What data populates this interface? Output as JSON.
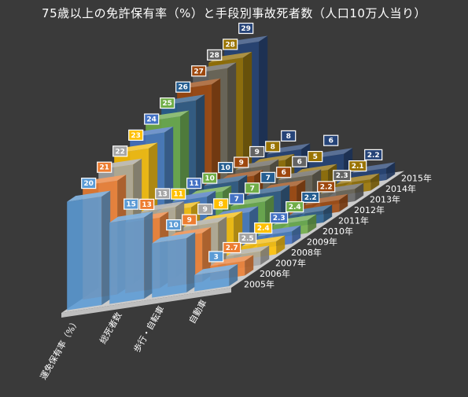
{
  "chart_data": {
    "type": "bar",
    "title": "75歳以上の免許保有率（%）と手段別事故死者数（人口10万人当り）",
    "categories": [
      "運免保有率（%）",
      "総死者数",
      "歩行・自転車",
      "自動車"
    ],
    "series": [
      {
        "name": "2005年",
        "values": [
          20,
          15,
          10,
          3.0
        ]
      },
      {
        "name": "2006年",
        "values": [
          21,
          13,
          9,
          2.7
        ]
      },
      {
        "name": "2007年",
        "values": [
          22,
          13,
          9,
          2.5
        ]
      },
      {
        "name": "2008年",
        "values": [
          23,
          11,
          8,
          2.4
        ]
      },
      {
        "name": "2009年",
        "values": [
          24,
          11,
          7,
          2.3
        ]
      },
      {
        "name": "2010年",
        "values": [
          25,
          10,
          7,
          2.4
        ]
      },
      {
        "name": "2011年",
        "values": [
          26,
          10,
          7,
          2.2
        ]
      },
      {
        "name": "2012年",
        "values": [
          27,
          9,
          6,
          2.2
        ]
      },
      {
        "name": "2013年",
        "values": [
          28,
          9,
          6,
          2.3
        ]
      },
      {
        "name": "2014年",
        "values": [
          28,
          8,
          5,
          2.1
        ]
      },
      {
        "name": "2015年",
        "values": [
          29,
          8,
          6,
          2.2
        ]
      }
    ],
    "legend": "depth-axis",
    "grid": false,
    "ylim": [
      0,
      30
    ]
  },
  "colors": {
    "background": "#3a3a3a",
    "floor": "#d9d9d9",
    "series": [
      "#5b9bd5",
      "#ed7d31",
      "#a5a5a5",
      "#ffc000",
      "#4472c4",
      "#70ad47",
      "#255e91",
      "#9e480e",
      "#636363",
      "#997300",
      "#264478"
    ]
  }
}
